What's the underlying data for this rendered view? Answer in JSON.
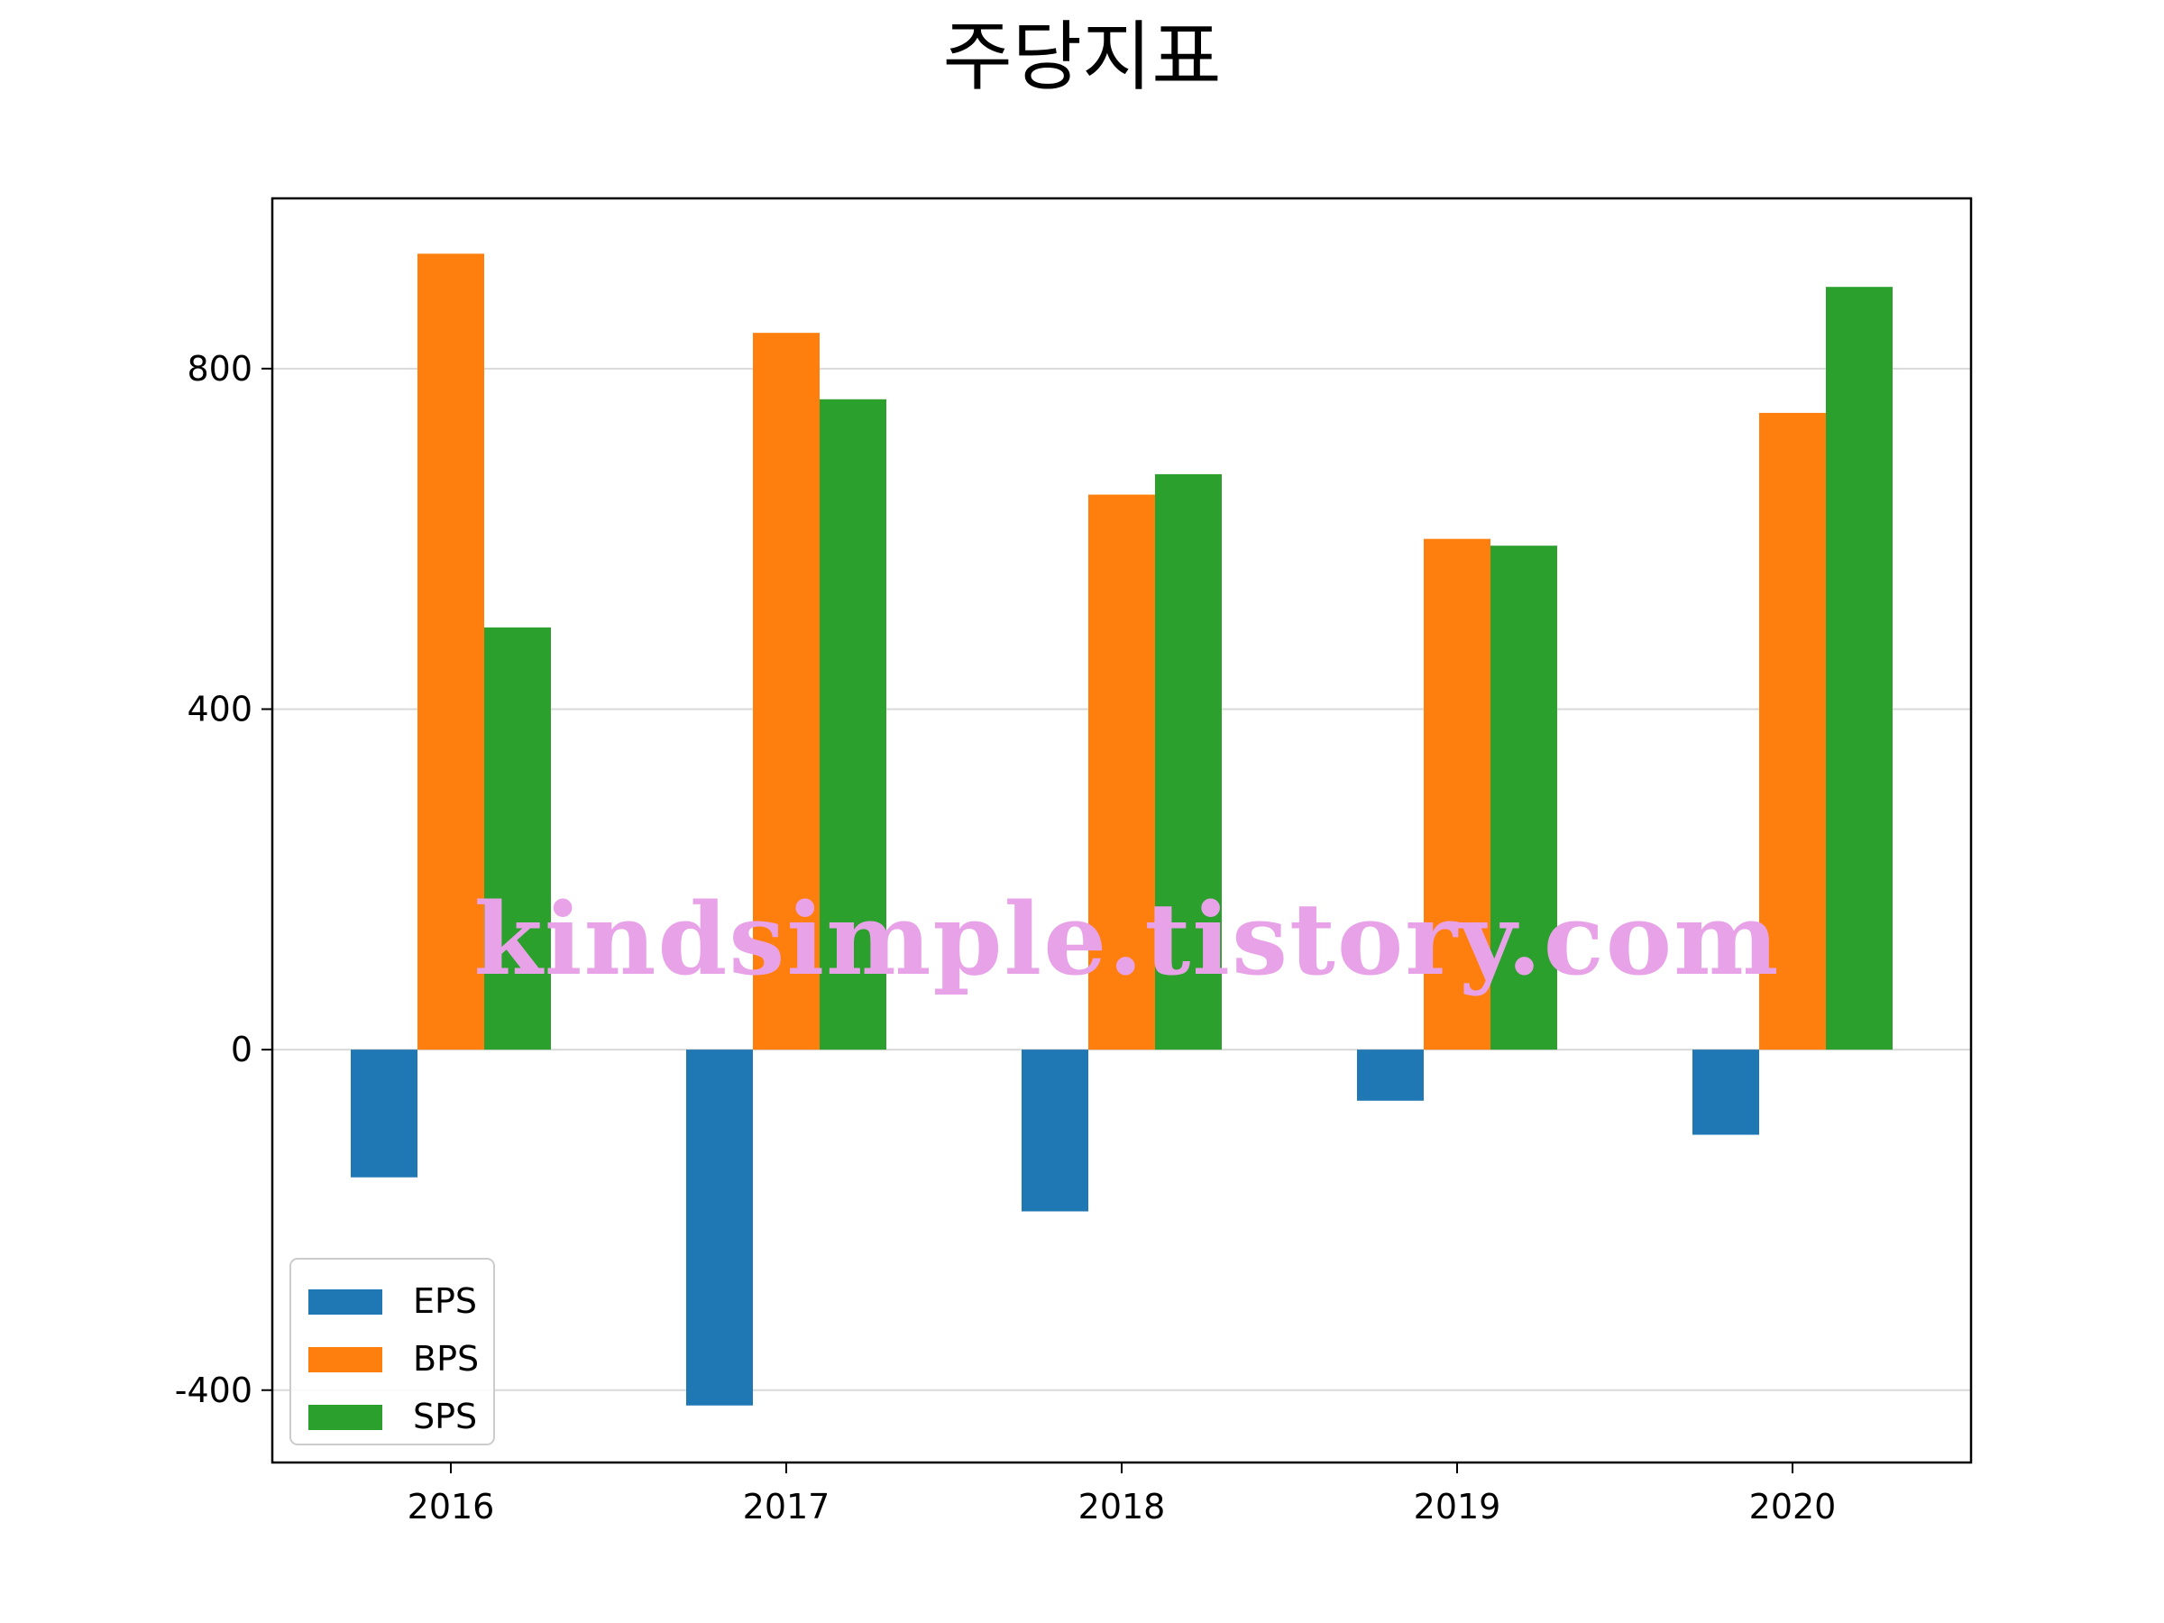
{
  "chart_data": {
    "type": "bar",
    "title": "주당지표",
    "categories": [
      "2016",
      "2017",
      "2018",
      "2019",
      "2020"
    ],
    "series": [
      {
        "name": "EPS",
        "color": "#1f77b4",
        "values": [
          -150,
          -418,
          -190,
          -60,
          -100
        ]
      },
      {
        "name": "BPS",
        "color": "#ff7f0e",
        "values": [
          935,
          842,
          652,
          600,
          748
        ]
      },
      {
        "name": "SPS",
        "color": "#2ca02c",
        "values": [
          496,
          764,
          676,
          592,
          896
        ]
      }
    ],
    "yticks": [
      -400,
      0,
      400,
      800
    ],
    "ytick_labels": [
      "-400",
      "0",
      "400",
      "800"
    ],
    "ylim": [
      -485,
      1000
    ],
    "xlabel": "",
    "ylabel": "",
    "grid": "y",
    "legend_position": "lower-left"
  },
  "watermark": "kindsimple.tistory.com"
}
